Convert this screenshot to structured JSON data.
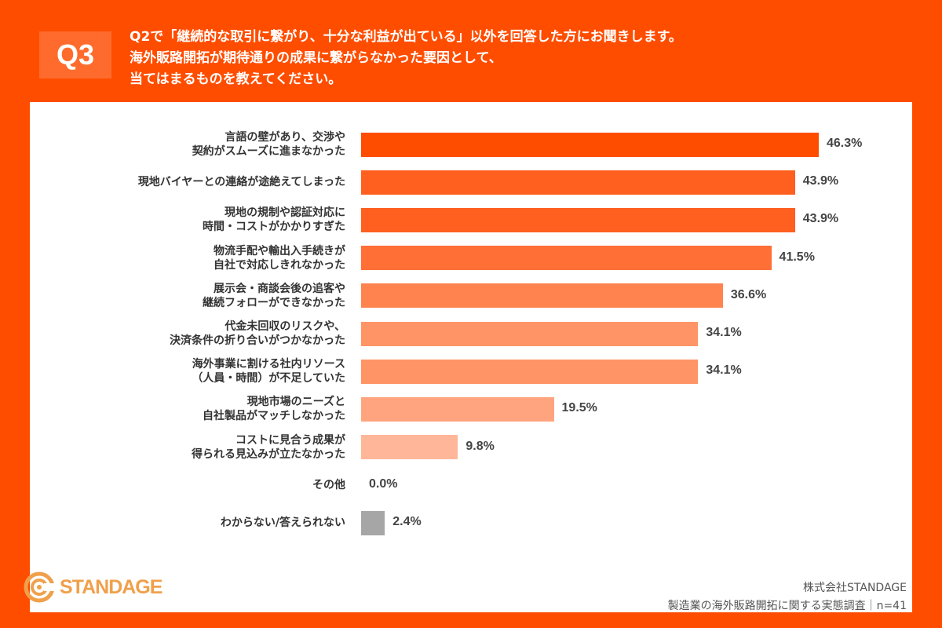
{
  "header": {
    "question_number": "Q3",
    "question_lines": [
      "Q2で「継続的な取引に繋がり、十分な利益が出ている」以外を回答した方にお聞きします。",
      "海外販路開拓が期待通りの成果に繋がらなかった要因として、",
      "当てはまるものを教えてください。"
    ]
  },
  "chart_data": {
    "type": "bar",
    "orientation": "horizontal",
    "categories": [
      [
        "言語の壁があり、交渉や",
        "契約がスムーズに進まなかった"
      ],
      [
        "現地バイヤーとの連絡が途絶えてしまった"
      ],
      [
        "現地の規制や認証対応に",
        "時間・コストがかかりすぎた"
      ],
      [
        "物流手配や輸出入手続きが",
        "自社で対応しきれなかった"
      ],
      [
        "展示会・商談会後の追客や",
        "継続フォローができなかった"
      ],
      [
        "代金未回収のリスクや、",
        "決済条件の折り合いがつかなかった"
      ],
      [
        "海外事業に割ける社内リソース",
        "（人員・時間）が不足していた"
      ],
      [
        "現地市場のニーズと",
        "自社製品がマッチしなかった"
      ],
      [
        "コストに見合う成果が",
        "得られる見込みが立たなかった"
      ],
      [
        "その他"
      ],
      [
        "わからない/答えられない"
      ]
    ],
    "values": [
      46.3,
      43.9,
      43.9,
      41.5,
      36.6,
      34.1,
      34.1,
      19.5,
      9.8,
      0.0,
      2.4
    ],
    "value_labels": [
      "46.3%",
      "43.9%",
      "43.9%",
      "41.5%",
      "36.6%",
      "34.1%",
      "34.1%",
      "19.5%",
      "9.8%",
      "0.0%",
      "2.4%"
    ],
    "colors": [
      "#ff4d00",
      "#ff5f1f",
      "#ff5f1f",
      "#ff6f36",
      "#ff834f",
      "#ff9466",
      "#ff9466",
      "#ffa47e",
      "#ffb699",
      "#ffb699",
      "#a6a6a6"
    ],
    "xlim": [
      0,
      50
    ],
    "grid": false
  },
  "footer": {
    "logo_text": "STANDAGE",
    "company": "株式会社STANDAGE",
    "survey": "製造業の海外販路開拓に関する実態調査｜n=41"
  }
}
